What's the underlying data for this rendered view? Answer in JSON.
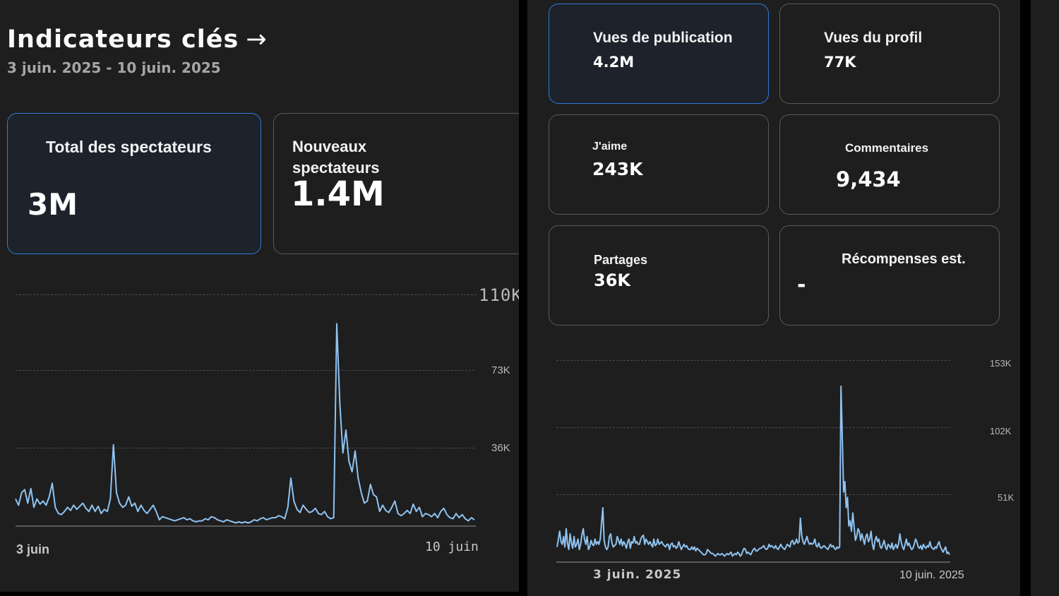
{
  "left": {
    "title": "Indicateurs clés",
    "title_arrow": "→",
    "date_range": "3 juin. 2025 - 10 juin. 2025",
    "cards": {
      "total_viewers": {
        "label": "Total des spectateurs",
        "value": "3M"
      },
      "new_viewers": {
        "label": "Nouveaux spectateurs",
        "value": "1.4M"
      }
    }
  },
  "right": {
    "cards": {
      "post_views": {
        "label": "Vues de publication",
        "value": "4.2M"
      },
      "profile_views": {
        "label": "Vues du profil",
        "value": "77K"
      },
      "likes": {
        "label": "J'aime",
        "value": "243K"
      },
      "comments": {
        "label": "Commentaires",
        "value": "9,434"
      },
      "shares": {
        "label": "Partages",
        "value": "36K"
      },
      "rewards": {
        "label": "Récompenses est.",
        "value": "-"
      }
    }
  },
  "colors": {
    "accent": "#2f7bd6",
    "line": "#8fc3f0",
    "panel_bg": "#1e1e1f",
    "border": "#5a5a5c"
  },
  "chart_data": [
    {
      "type": "line",
      "title": "",
      "x_labels": [
        "3 juin",
        "10 juin"
      ],
      "y_ticks": [
        "110K",
        "73K",
        "36K"
      ],
      "ylim": [
        0,
        110000
      ],
      "series": [
        {
          "name": "Spectateurs",
          "values": [
            12000,
            9000,
            15000,
            16500,
            10000,
            17000,
            8000,
            12000,
            9500,
            11000,
            9000,
            13000,
            19500,
            8000,
            5000,
            4500,
            6000,
            8000,
            6500,
            9000,
            7000,
            8500,
            10000,
            7500,
            6000,
            9000,
            6000,
            8500,
            5000,
            7000,
            6000,
            12000,
            38000,
            15000,
            10000,
            8000,
            9000,
            13000,
            8500,
            10000,
            6000,
            9000,
            6500,
            5000,
            7000,
            9000,
            6000,
            2000,
            3500,
            3000,
            2500,
            2000,
            1500,
            2000,
            2500,
            3000,
            2000,
            2500,
            1500,
            1000,
            1500,
            1500,
            2500,
            2000,
            3500,
            3000,
            2000,
            1500,
            1000,
            2000,
            1500,
            1000,
            500,
            1000,
            500,
            1000,
            500,
            1000,
            2000,
            1500,
            2500,
            3000,
            2000,
            2500,
            3000,
            3000,
            4000,
            3500,
            2500,
            8000,
            22000,
            11000,
            7000,
            5500,
            9000,
            7000,
            5500,
            6000,
            7500,
            5000,
            4500,
            6000,
            3500,
            2500,
            3000,
            96000,
            58000,
            34000,
            45000,
            30000,
            25000,
            35000,
            22000,
            15000,
            10000,
            11000,
            19000,
            14000,
            13000,
            6000,
            9000,
            6500,
            5500,
            8000,
            11000,
            5000,
            4000,
            5000,
            6500,
            5000,
            9500,
            6000,
            8000,
            3500,
            5000,
            4500,
            3500,
            5000,
            3000,
            6000,
            7500,
            4500,
            3000,
            2500,
            5000,
            3000,
            4500,
            2500,
            1500,
            3000,
            2000
          ]
        }
      ]
    },
    {
      "type": "line",
      "title": "",
      "x_labels": [
        "3 juin. 2025",
        "10 juin. 2025"
      ],
      "y_ticks": [
        "153K",
        "102K",
        "51K"
      ],
      "ylim": [
        0,
        153000
      ],
      "series": [
        {
          "name": "Vues de publication",
          "values": [
            10000,
            16000,
            22000,
            14000,
            12000,
            18000,
            10000,
            24000,
            13000,
            8000,
            20000,
            13000,
            9000,
            18000,
            10000,
            12000,
            16000,
            8000,
            12000,
            19000,
            24000,
            16000,
            12000,
            18000,
            8000,
            10000,
            15000,
            12000,
            11000,
            16000,
            12000,
            14000,
            12000,
            16000,
            28000,
            40000,
            15000,
            10000,
            8000,
            10000,
            18000,
            20000,
            13000,
            10000,
            11000,
            12000,
            18000,
            15000,
            12000,
            16000,
            11000,
            14000,
            12000,
            9000,
            14000,
            16000,
            9000,
            14000,
            13000,
            18000,
            13000,
            14000,
            12000,
            12000,
            16000,
            18000,
            19000,
            12000,
            16000,
            14000,
            12000,
            14000,
            12000,
            10000,
            16000,
            11000,
            12000,
            16000,
            12000,
            13000,
            14000,
            12000,
            11000,
            10000,
            12000,
            12000,
            8000,
            12000,
            13000,
            10000,
            11000,
            9000,
            10000,
            14000,
            11000,
            8000,
            10000,
            12000,
            10000,
            11000,
            9000,
            8000,
            8000,
            10000,
            8000,
            10000,
            7000,
            9000,
            8000,
            7000,
            6000,
            5000,
            4000,
            4000,
            5000,
            8000,
            7000,
            6000,
            5000,
            5000,
            4000,
            3000,
            4000,
            5000,
            4000,
            4000,
            5000,
            4000,
            3000,
            4000,
            5000,
            4000,
            5000,
            6000,
            3000,
            4000,
            5000,
            4000,
            6000,
            5000,
            3000,
            4000,
            7000,
            9000,
            8000,
            5000,
            6000,
            5000,
            4000,
            6000,
            8000,
            9000,
            7000,
            7000,
            8000,
            9000,
            9000,
            10000,
            11000,
            9000,
            8000,
            9000,
            12000,
            10000,
            11000,
            10000,
            9000,
            11000,
            9000,
            8000,
            10000,
            12000,
            10000,
            9000,
            8000,
            10000,
            12000,
            11000,
            10000,
            14000,
            15000,
            12000,
            13000,
            16000,
            13000,
            14000,
            32000,
            19000,
            14000,
            12000,
            15000,
            18000,
            14000,
            12000,
            13000,
            12000,
            13000,
            16000,
            11000,
            10000,
            13000,
            10000,
            9000,
            10000,
            11000,
            10000,
            9000,
            8000,
            10000,
            12000,
            10000,
            11000,
            9000,
            8000,
            10000,
            9000,
            10000,
            133000,
            95000,
            52000,
            60000,
            40000,
            48000,
            26000,
            30000,
            22000,
            36000,
            26000,
            15000,
            18000,
            24000,
            22000,
            15000,
            20000,
            16000,
            12000,
            18000,
            20000,
            14000,
            16000,
            22000,
            12000,
            8000,
            15000,
            18000,
            14000,
            16000,
            10000,
            9000,
            12000,
            15000,
            10000,
            8000,
            12000,
            11000,
            9000,
            13000,
            8000,
            10000,
            12000,
            9000,
            12000,
            20000,
            14000,
            10000,
            8000,
            12000,
            16000,
            11000,
            13000,
            10000,
            8000,
            9000,
            12000,
            16000,
            14000,
            10000,
            9000,
            11000,
            8000,
            12000,
            10000,
            9000,
            11000,
            10000,
            14000,
            10000,
            9000,
            8000,
            10000,
            9000,
            12000,
            14000,
            10000,
            8000,
            6000,
            8000,
            10000,
            5000,
            6000,
            4000
          ]
        }
      ]
    }
  ]
}
